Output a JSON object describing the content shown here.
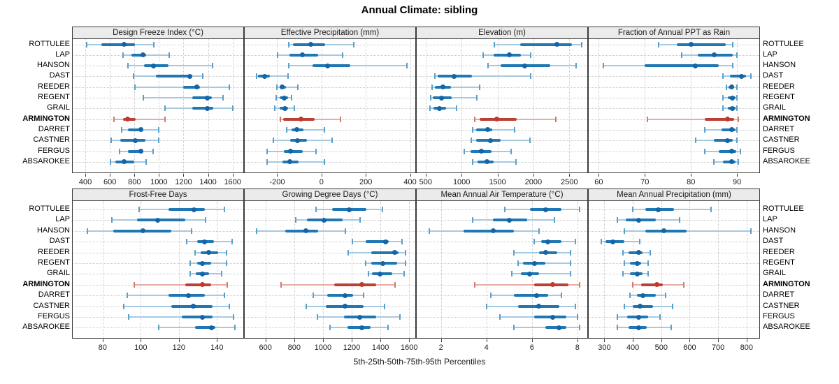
{
  "title": "Annual Climate: sibling",
  "caption": "5th-25th-50th-75th-95th Percentiles",
  "highlighted_station": "ARMINGTON",
  "colors": {
    "blue_bar": "#1f77b4",
    "blue_dot": "#1565a5",
    "blue_light": "#a6c9e2",
    "blue_cap": "#5c9fc9",
    "red_bar": "#bb4036",
    "red_dot": "#c0392b",
    "red_light": "#e7aca6",
    "red_cap": "#cf7a72",
    "header_bg": "#ebebeb",
    "grid": "#c9c9c9",
    "border": "#3a3a3a"
  },
  "chart_data": {
    "type": "dotplot-percentiles",
    "percentile_labels": [
      "5th",
      "25th",
      "50th",
      "75th",
      "95th"
    ],
    "legend_note": "values per station are [5th, 25th, 50th, 75th, 95th] percentiles",
    "stations": [
      "ROTTULEE",
      "LAP",
      "HANSON",
      "DAST",
      "REEDER",
      "REGENT",
      "GRAIL",
      "ARMINGTON",
      "DARRET",
      "CASTNER",
      "FERGUS",
      "ABSAROKEE"
    ],
    "panels": [
      {
        "title": "Design Freeze Index (°C)",
        "grid_row": 0,
        "ticks": [
          400,
          600,
          800,
          1000,
          1200,
          1400,
          1600
        ],
        "range": [
          300,
          1690
        ],
        "series": [
          [
            410,
            530,
            718,
            805,
            960
          ],
          [
            705,
            775,
            870,
            895,
            1085
          ],
          [
            745,
            880,
            955,
            1075,
            1435
          ],
          [
            795,
            975,
            1250,
            1270,
            1355
          ],
          [
            805,
            1195,
            1310,
            1335,
            1575
          ],
          [
            870,
            1270,
            1395,
            1430,
            1520
          ],
          [
            1050,
            1270,
            1395,
            1445,
            1600
          ],
          [
            635,
            705,
            745,
            810,
            1050
          ],
          [
            695,
            750,
            855,
            870,
            1000
          ],
          [
            610,
            685,
            805,
            890,
            1000
          ],
          [
            680,
            745,
            855,
            870,
            950
          ],
          [
            605,
            645,
            715,
            800,
            895
          ]
        ]
      },
      {
        "title": "Effective Precipitation (mm)",
        "grid_row": 0,
        "ticks": [
          -200,
          0,
          200,
          400
        ],
        "range": [
          -345,
          425
        ],
        "series": [
          [
            -148,
            -130,
            -49,
            15,
            145
          ],
          [
            -198,
            -144,
            -86,
            -16,
            94
          ],
          [
            -148,
            -42,
            28,
            130,
            385
          ],
          [
            -292,
            -286,
            -258,
            -234,
            -151
          ],
          [
            -200,
            -190,
            -179,
            -161,
            -106
          ],
          [
            -203,
            -188,
            -169,
            -151,
            -135
          ],
          [
            -210,
            -188,
            -165,
            -151,
            -123
          ],
          [
            -185,
            -172,
            -94,
            -31,
            86
          ],
          [
            -158,
            -135,
            -111,
            -83,
            13
          ],
          [
            -217,
            -141,
            -109,
            -65,
            49
          ],
          [
            -245,
            -169,
            -139,
            -85,
            -26
          ],
          [
            -245,
            -177,
            -144,
            -104,
            13
          ]
        ]
      },
      {
        "title": "Elevation (m)",
        "grid_row": 0,
        "ticks": [
          500,
          1000,
          1500,
          2000,
          2500
        ],
        "range": [
          380,
          2755
        ],
        "series": [
          [
            1460,
            1815,
            2330,
            2540,
            2670
          ],
          [
            1300,
            1445,
            1665,
            1830,
            1960
          ],
          [
            1365,
            1540,
            1880,
            2235,
            2590
          ],
          [
            625,
            670,
            895,
            1140,
            1960
          ],
          [
            590,
            625,
            740,
            850,
            1250
          ],
          [
            570,
            600,
            720,
            865,
            1215
          ],
          [
            560,
            605,
            695,
            785,
            930
          ],
          [
            1180,
            1250,
            1485,
            1770,
            2310
          ],
          [
            1155,
            1205,
            1360,
            1430,
            1735
          ],
          [
            1130,
            1205,
            1405,
            1540,
            1955
          ],
          [
            1040,
            1125,
            1275,
            1415,
            1685
          ],
          [
            1150,
            1225,
            1350,
            1445,
            1760
          ]
        ]
      },
      {
        "title": "Fraction of Annual PPT as Rain",
        "grid_row": 0,
        "ticks": [
          60,
          70,
          80,
          90
        ],
        "range": [
          57.9,
          94.9
        ],
        "series": [
          [
            73,
            77,
            80,
            87.5,
            89
          ],
          [
            78,
            81.5,
            85,
            89,
            90
          ],
          [
            61,
            70,
            81,
            86,
            89
          ],
          [
            87,
            88.5,
            91,
            92,
            93
          ],
          [
            87.7,
            88.2,
            88.8,
            89.4,
            90
          ],
          [
            87,
            88,
            89,
            89.7,
            90
          ],
          [
            87,
            88,
            89,
            89.7,
            90
          ],
          [
            70.5,
            83,
            88,
            89.4,
            90.3
          ],
          [
            83,
            86.7,
            88.9,
            89.7,
            90
          ],
          [
            81,
            85,
            88,
            89,
            90
          ],
          [
            83,
            86,
            88.9,
            89.8,
            90.8
          ],
          [
            85,
            87,
            88.9,
            89.7,
            90.2
          ]
        ]
      },
      {
        "title": "Frost-Free Days",
        "grid_row": 1,
        "ticks": [
          80,
          100,
          120,
          140
        ],
        "range": [
          64.5,
          154
        ],
        "series": [
          [
            99,
            114.5,
            128,
            133.5,
            144
          ],
          [
            85,
            98,
            109,
            123.5,
            134
          ],
          [
            72,
            85.5,
            101,
            116,
            126.5
          ],
          [
            124,
            129.5,
            133.5,
            138.5,
            148
          ],
          [
            128.5,
            131.5,
            135.5,
            140.5,
            145
          ],
          [
            126,
            129.5,
            132.5,
            137,
            145
          ],
          [
            126,
            129,
            132.5,
            136,
            142.5
          ],
          [
            96.5,
            123.5,
            132.5,
            137,
            145.5
          ],
          [
            93,
            114.5,
            125,
            133.5,
            144
          ],
          [
            91,
            116,
            127.5,
            137.5,
            146.5
          ],
          [
            93.5,
            121.5,
            132.5,
            137.5,
            148.5
          ],
          [
            109.5,
            128.5,
            137,
            139,
            149.5
          ]
        ]
      },
      {
        "title": "Growing Degree Days (°C)",
        "grid_row": 1,
        "ticks": [
          600,
          800,
          1000,
          1200,
          1400,
          1600
        ],
        "range": [
          458,
          1645
        ],
        "series": [
          [
            950,
            1065,
            1185,
            1300,
            1415
          ],
          [
            810,
            890,
            1010,
            1135,
            1260
          ],
          [
            540,
            740,
            880,
            965,
            1155
          ],
          [
            1205,
            1295,
            1435,
            1460,
            1550
          ],
          [
            1175,
            1335,
            1500,
            1525,
            1575
          ],
          [
            1295,
            1335,
            1415,
            1515,
            1575
          ],
          [
            1315,
            1340,
            1395,
            1480,
            1565
          ],
          [
            710,
            1080,
            1270,
            1370,
            1500
          ],
          [
            930,
            1030,
            1155,
            1210,
            1285
          ],
          [
            885,
            1020,
            1155,
            1285,
            1430
          ],
          [
            960,
            1145,
            1255,
            1370,
            1535
          ],
          [
            1050,
            1170,
            1270,
            1330,
            1455
          ]
        ]
      },
      {
        "title": "Mean Annual Air Temperature (°C)",
        "grid_row": 1,
        "ticks": [
          2,
          4,
          6,
          8
        ],
        "range": [
          0.95,
          8.45
        ],
        "series": [
          [
            4.8,
            5.9,
            6.6,
            7.3,
            8.1
          ],
          [
            3.4,
            4.3,
            5.0,
            5.8,
            7.0
          ],
          [
            1.5,
            3.0,
            4.3,
            5.2,
            6.3
          ],
          [
            6.1,
            6.4,
            6.7,
            7.3,
            7.9
          ],
          [
            5.2,
            6.3,
            6.6,
            7.1,
            7.7
          ],
          [
            5.4,
            5.6,
            6.1,
            6.6,
            7.7
          ],
          [
            5.1,
            5.5,
            5.9,
            6.3,
            7.7
          ],
          [
            3.5,
            6.1,
            6.9,
            7.6,
            8.1
          ],
          [
            4.2,
            5.2,
            6.2,
            6.7,
            7.3
          ],
          [
            4.0,
            5.4,
            6.3,
            7.2,
            7.9
          ],
          [
            4.6,
            6.1,
            6.9,
            7.5,
            8.0
          ],
          [
            5.2,
            6.6,
            7.2,
            7.5,
            8.1
          ]
        ]
      },
      {
        "title": "Mean Annual Precipitation (mm)",
        "grid_row": 1,
        "ticks": [
          300,
          400,
          500,
          600,
          700,
          800
        ],
        "range": [
          246,
          846
        ],
        "series": [
          [
            400,
            445,
            490,
            545,
            675
          ],
          [
            345,
            375,
            420,
            480,
            565
          ],
          [
            370,
            445,
            510,
            590,
            815
          ],
          [
            290,
            305,
            330,
            370,
            425
          ],
          [
            365,
            385,
            420,
            435,
            460
          ],
          [
            370,
            390,
            415,
            430,
            455
          ],
          [
            365,
            390,
            415,
            435,
            455
          ],
          [
            400,
            430,
            485,
            505,
            580
          ],
          [
            390,
            415,
            435,
            480,
            515
          ],
          [
            370,
            400,
            425,
            470,
            540
          ],
          [
            345,
            380,
            420,
            455,
            495
          ],
          [
            345,
            385,
            420,
            450,
            535
          ]
        ]
      }
    ]
  }
}
